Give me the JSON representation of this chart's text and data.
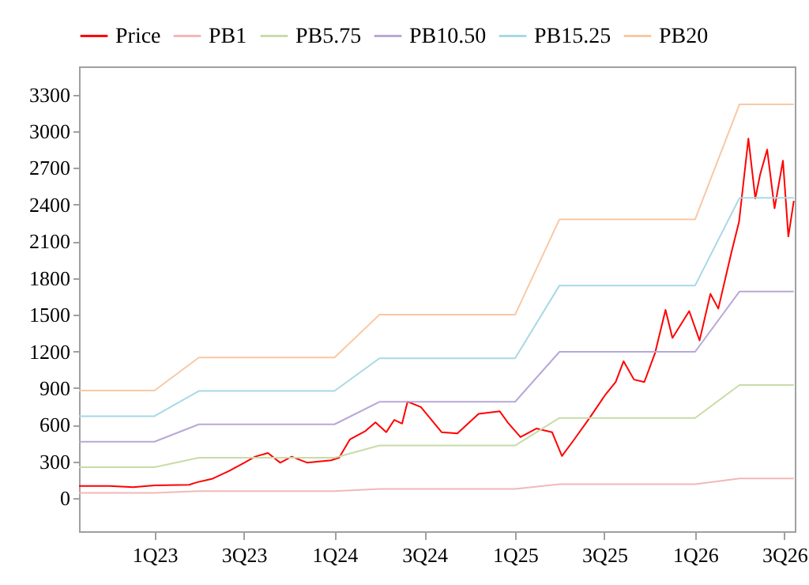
{
  "chart_data": {
    "type": "line",
    "legend": "top",
    "ylim": [
      -270,
      3530
    ],
    "yticks": [
      0,
      300,
      600,
      900,
      1200,
      1500,
      1800,
      2100,
      2400,
      2700,
      3000,
      3300
    ],
    "xlim": [
      "2022-08-01",
      "2026-07-22"
    ],
    "xticks": [
      {
        "value": "2023-01-01",
        "label": "1Q23"
      },
      {
        "value": "2023-07-01",
        "label": "3Q23"
      },
      {
        "value": "2024-01-01",
        "label": "1Q24"
      },
      {
        "value": "2024-07-01",
        "label": "3Q24"
      },
      {
        "value": "2025-01-01",
        "label": "1Q25"
      },
      {
        "value": "2025-07-01",
        "label": "3Q25"
      },
      {
        "value": "2026-01-01",
        "label": "1Q26"
      },
      {
        "value": "2026-07-01",
        "label": "3Q26"
      }
    ],
    "series": [
      {
        "name": "Price",
        "color": "#ff0000",
        "x": [
          "2022-08-01",
          "2022-10-02",
          "2022-11-19",
          "2023-01-01",
          "2023-03-12",
          "2023-03-28",
          "2023-04-29",
          "2023-05-31",
          "2023-07-02",
          "2023-07-24",
          "2023-08-19",
          "2023-09-13",
          "2023-10-06",
          "2023-11-07",
          "2023-12-25",
          "2024-01-10",
          "2024-02-01",
          "2024-03-04",
          "2024-03-24",
          "2024-04-15",
          "2024-05-01",
          "2024-05-17",
          "2024-05-28",
          "2024-06-24",
          "2024-08-05",
          "2024-09-06",
          "2024-10-19",
          "2024-12-01",
          "2024-12-17",
          "2025-01-12",
          "2025-02-13",
          "2025-03-17",
          "2025-04-06",
          "2025-04-29",
          "2025-05-31",
          "2025-07-02",
          "2025-07-24",
          "2025-08-09",
          "2025-08-30",
          "2025-09-20",
          "2025-10-12",
          "2025-11-02",
          "2025-11-16",
          "2025-12-20",
          "2026-01-10",
          "2026-02-01",
          "2026-02-17",
          "2026-03-15",
          "2026-03-31",
          "2026-04-19",
          "2026-05-03",
          "2026-05-13",
          "2026-05-27",
          "2026-06-11",
          "2026-06-28",
          "2026-07-09",
          "2026-07-20"
        ],
        "values": [
          100,
          100,
          90,
          105,
          110,
          130,
          160,
          220,
          290,
          340,
          370,
          290,
          340,
          290,
          310,
          330,
          480,
          550,
          620,
          540,
          640,
          610,
          790,
          745,
          540,
          530,
          690,
          710,
          620,
          500,
          570,
          540,
          345,
          470,
          650,
          840,
          950,
          1120,
          970,
          950,
          1190,
          1540,
          1310,
          1530,
          1290,
          1670,
          1550,
          2000,
          2260,
          2940,
          2450,
          2650,
          2850,
          2370,
          2760,
          2140,
          2430
        ]
      },
      {
        "name": "PB1",
        "color": "#f2b8b8",
        "x": [
          "2022-08-01",
          "2023-01-01",
          "2023-04-01",
          "2024-01-01",
          "2024-04-01",
          "2025-01-01",
          "2025-04-01",
          "2026-01-01",
          "2026-04-01",
          "2026-07-20"
        ],
        "values": [
          44,
          44,
          57.5,
          57.5,
          75,
          75,
          114,
          114,
          161,
          161
        ]
      },
      {
        "name": "PB5.75",
        "color": "#c8dca8",
        "x": [
          "2022-08-01",
          "2023-01-01",
          "2023-04-01",
          "2024-01-01",
          "2024-04-01",
          "2025-01-01",
          "2025-04-01",
          "2026-01-01",
          "2026-04-01",
          "2026-07-20"
        ],
        "values": [
          253,
          253,
          331,
          331,
          431,
          431,
          656,
          656,
          926,
          926
        ]
      },
      {
        "name": "PB10.50",
        "color": "#b8a8d8",
        "x": [
          "2022-08-01",
          "2023-01-01",
          "2023-04-01",
          "2024-01-01",
          "2024-04-01",
          "2025-01-01",
          "2025-04-01",
          "2026-01-01",
          "2026-04-01",
          "2026-07-20"
        ],
        "values": [
          462,
          462,
          604,
          604,
          788,
          788,
          1197,
          1197,
          1690,
          1690
        ]
      },
      {
        "name": "PB15.25",
        "color": "#a8d8e6",
        "x": [
          "2022-08-01",
          "2023-01-01",
          "2023-04-01",
          "2024-01-01",
          "2024-04-01",
          "2025-01-01",
          "2025-04-01",
          "2026-01-01",
          "2026-04-01",
          "2026-07-20"
        ],
        "values": [
          671,
          671,
          877,
          877,
          1144,
          1144,
          1739,
          1739,
          2455,
          2455
        ]
      },
      {
        "name": "PB20",
        "color": "#f8c8a4",
        "x": [
          "2022-08-01",
          "2023-01-01",
          "2023-04-01",
          "2024-01-01",
          "2024-04-01",
          "2025-01-01",
          "2025-04-01",
          "2026-01-01",
          "2026-04-01",
          "2026-07-20"
        ],
        "values": [
          880,
          880,
          1150,
          1150,
          1500,
          1500,
          2280,
          2280,
          3220,
          3220
        ]
      }
    ]
  }
}
